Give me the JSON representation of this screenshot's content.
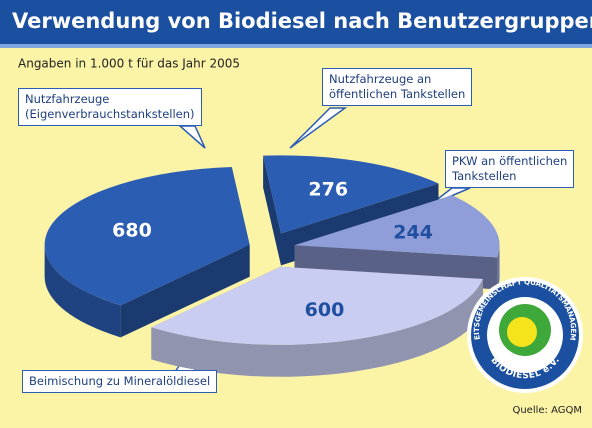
{
  "chart_data": {
    "type": "pie3d",
    "title": "Verwendung von Biodiesel nach Benutzergruppen",
    "subtitle": "Angaben in 1.000 t für das Jahr 2005",
    "source": "Quelle: AGQM",
    "categories": [
      "Nutzfahrzeuge an\nöffentlichen Tankstellen",
      "PKW an öffentlichen\nTankstellen",
      "Beimischung zu Mineralöldiesel",
      "Nutzfahrzeuge\n(Eigenverbrauchstankstellen)"
    ],
    "values": [
      276,
      244,
      600,
      680
    ],
    "colors": [
      "#2b5db3",
      "#8f9ed8",
      "#c9cdf1",
      "#2b5db3"
    ],
    "label_colors": [
      "#ffffff",
      "#1f4f9e",
      "#1f4f9e",
      "#ffffff"
    ]
  },
  "logo": {
    "ring": "ARBEITSGEMEINSCHAFT QUALITÄTSMANAGEMENT",
    "name": "BIODIESEL e.V."
  }
}
